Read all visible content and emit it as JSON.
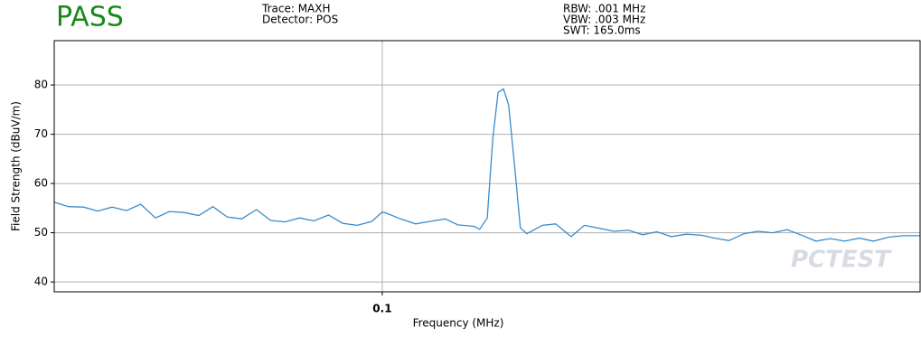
{
  "header": {
    "status": "PASS",
    "trace": "Trace: MAXH",
    "detector": "Detector: POS",
    "rbw": "RBW: .001 MHz",
    "vbw": "VBW: .003 MHz",
    "swt": "SWT: 165.0ms"
  },
  "chart_data": {
    "type": "line",
    "x_label": "Frequency (MHz)",
    "y_label": "Field Strength (dBuV/m)",
    "watermark": "PCTEST",
    "xscale": "log",
    "grid": true,
    "xlim": [
      0.03,
      0.72
    ],
    "xticks": [
      0.1
    ],
    "ylim": [
      38,
      89
    ],
    "yticks": [
      40,
      50,
      60,
      70,
      80
    ],
    "series": [
      {
        "color": "#3a8ccd",
        "x": [
          0.03,
          0.0316,
          0.0334,
          0.0352,
          0.0371,
          0.0391,
          0.0412,
          0.0435,
          0.0458,
          0.0483,
          0.051,
          0.0537,
          0.0566,
          0.0597,
          0.063,
          0.0664,
          0.07,
          0.0738,
          0.0778,
          0.0821,
          0.0865,
          0.0912,
          0.0962,
          0.1,
          0.1014,
          0.107,
          0.113,
          0.119,
          0.126,
          0.132,
          0.14,
          0.143,
          0.147,
          0.15,
          0.153,
          0.156,
          0.159,
          0.163,
          0.166,
          0.17,
          0.18,
          0.189,
          0.2,
          0.21,
          0.222,
          0.234,
          0.247,
          0.26,
          0.274,
          0.289,
          0.305,
          0.322,
          0.339,
          0.357,
          0.377,
          0.397,
          0.419,
          0.442,
          0.466,
          0.491,
          0.518,
          0.546,
          0.576,
          0.607,
          0.641,
          0.676,
          0.72
        ],
        "values": [
          56.2,
          55.3,
          55.2,
          54.4,
          55.2,
          54.5,
          55.8,
          53.0,
          54.3,
          54.1,
          53.5,
          55.3,
          53.2,
          52.8,
          54.7,
          52.5,
          52.2,
          53.0,
          52.4,
          53.6,
          51.9,
          51.5,
          52.3,
          54.2,
          54.0,
          52.8,
          51.8,
          52.3,
          52.8,
          51.6,
          51.3,
          50.7,
          53.0,
          69.0,
          78.5,
          79.2,
          76.0,
          62.0,
          51.0,
          49.8,
          51.5,
          51.8,
          49.2,
          51.5,
          50.9,
          50.3,
          50.5,
          49.6,
          50.2,
          49.2,
          49.7,
          49.5,
          48.9,
          48.4,
          49.8,
          50.3,
          50.0,
          50.6,
          49.5,
          48.3,
          48.8,
          48.3,
          48.9,
          48.3,
          49.1,
          49.4,
          49.4
        ]
      }
    ]
  }
}
